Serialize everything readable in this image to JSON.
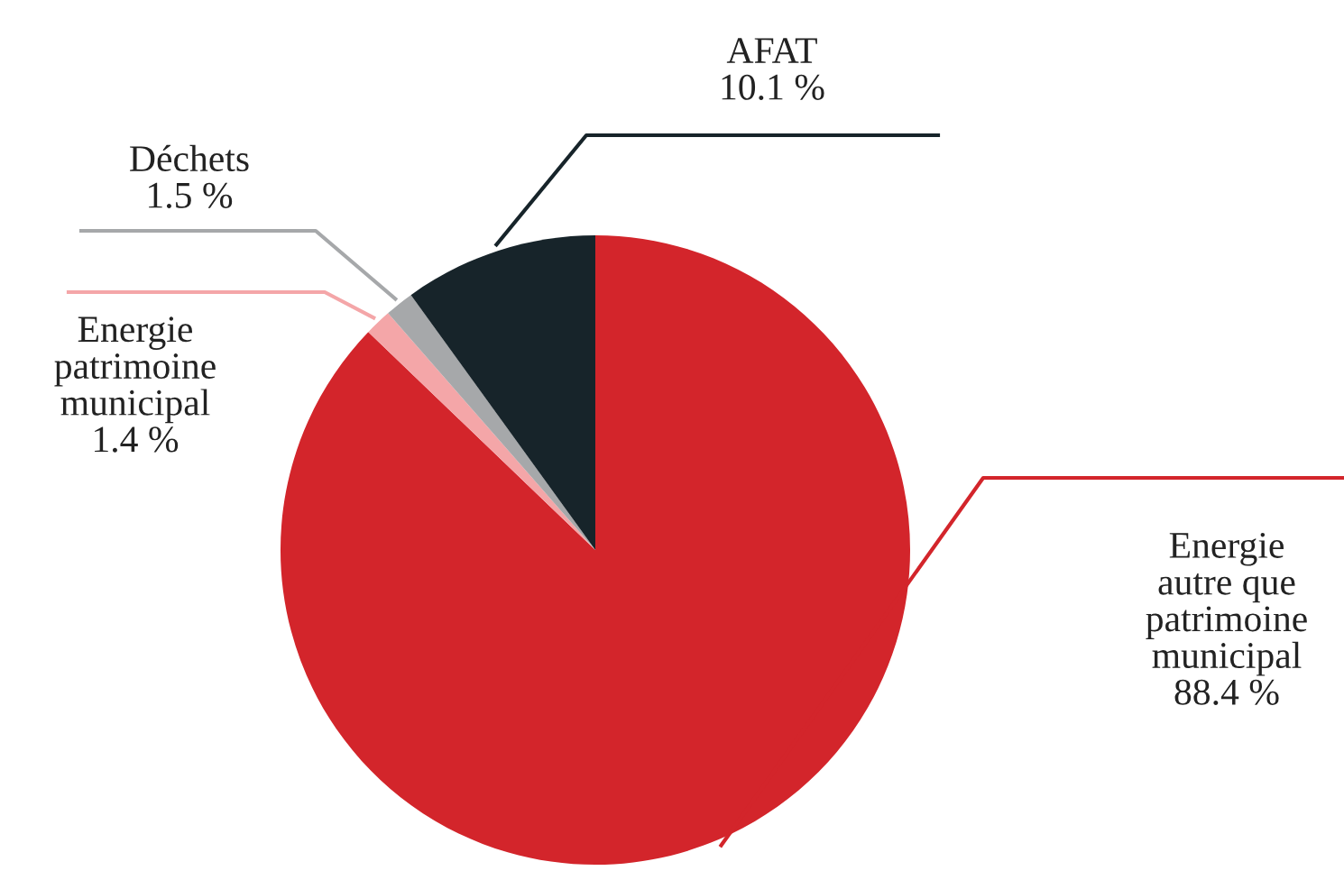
{
  "chart_data": {
    "type": "pie",
    "categories": [
      "Energie\nautre que\npatrimoine\nmunicipal",
      "Energie\npatrimoine\nmunicipal",
      "Déchets",
      "AFAT"
    ],
    "values": [
      88.4,
      1.4,
      1.5,
      10.1
    ],
    "value_labels": [
      "88.4 %",
      "1.4 %",
      "1.5 %",
      "10.1 %"
    ],
    "colors": [
      "#d3252b",
      "#f4a6a8",
      "#a6a8aa",
      "#17242a"
    ],
    "legend": false
  }
}
